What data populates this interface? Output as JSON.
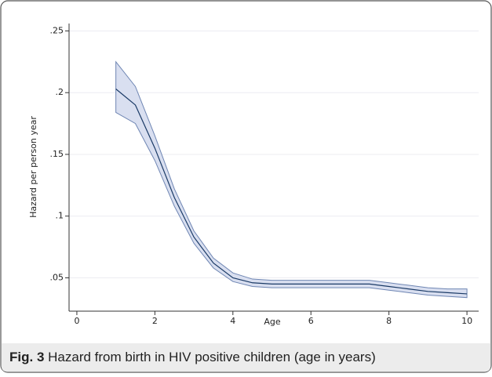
{
  "chart_data": {
    "type": "line",
    "xlabel": "Age",
    "ylabel": "Hazard per person year",
    "x": [
      1,
      1.5,
      2,
      2.5,
      3,
      3.5,
      4,
      4.5,
      5,
      5.5,
      6,
      6.5,
      7,
      7.5,
      8,
      8.5,
      9,
      9.5,
      10
    ],
    "values": [
      0.203,
      0.19,
      0.155,
      0.115,
      0.083,
      0.062,
      0.05,
      0.046,
      0.045,
      0.045,
      0.045,
      0.045,
      0.045,
      0.045,
      0.043,
      0.041,
      0.039,
      0.038,
      0.037
    ],
    "lower": [
      0.184,
      0.175,
      0.145,
      0.108,
      0.078,
      0.058,
      0.047,
      0.043,
      0.042,
      0.042,
      0.042,
      0.042,
      0.042,
      0.042,
      0.04,
      0.038,
      0.036,
      0.035,
      0.034
    ],
    "upper": [
      0.225,
      0.205,
      0.165,
      0.122,
      0.088,
      0.066,
      0.054,
      0.049,
      0.048,
      0.048,
      0.048,
      0.048,
      0.048,
      0.048,
      0.046,
      0.044,
      0.042,
      0.041,
      0.041
    ],
    "color": "#1a3a66",
    "band_color": "#d9dff0",
    "band_edge": "#6f86b3",
    "xlim": [
      -0.2,
      10.3
    ],
    "ylim": [
      0.023,
      0.256
    ],
    "xticks": [
      0,
      2,
      4,
      6,
      8,
      10
    ],
    "yticks": [
      {
        "value": 0.05,
        "label": ".05"
      },
      {
        "value": 0.1,
        "label": ".1"
      },
      {
        "value": 0.15,
        "label": ".15"
      },
      {
        "value": 0.2,
        "label": ".2"
      },
      {
        "value": 0.25,
        "label": ".25"
      }
    ],
    "grid": true
  },
  "caption": {
    "label": "Fig. 3",
    "text": "Hazard from birth in HIV positive children (age in years)"
  }
}
